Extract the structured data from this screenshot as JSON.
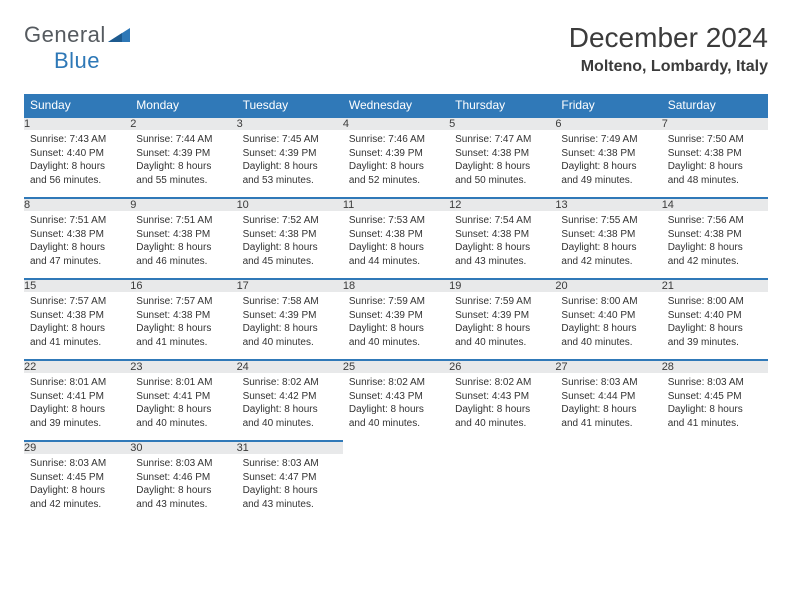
{
  "logo": {
    "word1": "General",
    "word2": "Blue"
  },
  "title": "December 2024",
  "location": "Molteno, Lombardy, Italy",
  "colors": {
    "header_bg": "#3079b8",
    "header_text": "#ffffff",
    "daynum_bg": "#e8e9ea",
    "border": "#3079b8",
    "text": "#333333",
    "logo_gray": "#555a5f",
    "logo_blue": "#2e78b7",
    "background": "#ffffff"
  },
  "typography": {
    "title_fontsize": 28,
    "location_fontsize": 16,
    "dayheader_fontsize": 12,
    "daynum_fontsize": 11,
    "detail_fontsize": 10
  },
  "day_headers": [
    "Sunday",
    "Monday",
    "Tuesday",
    "Wednesday",
    "Thursday",
    "Friday",
    "Saturday"
  ],
  "weeks": [
    [
      {
        "n": "1",
        "sunrise": "Sunrise: 7:43 AM",
        "sunset": "Sunset: 4:40 PM",
        "daylight": "Daylight: 8 hours and 56 minutes."
      },
      {
        "n": "2",
        "sunrise": "Sunrise: 7:44 AM",
        "sunset": "Sunset: 4:39 PM",
        "daylight": "Daylight: 8 hours and 55 minutes."
      },
      {
        "n": "3",
        "sunrise": "Sunrise: 7:45 AM",
        "sunset": "Sunset: 4:39 PM",
        "daylight": "Daylight: 8 hours and 53 minutes."
      },
      {
        "n": "4",
        "sunrise": "Sunrise: 7:46 AM",
        "sunset": "Sunset: 4:39 PM",
        "daylight": "Daylight: 8 hours and 52 minutes."
      },
      {
        "n": "5",
        "sunrise": "Sunrise: 7:47 AM",
        "sunset": "Sunset: 4:38 PM",
        "daylight": "Daylight: 8 hours and 50 minutes."
      },
      {
        "n": "6",
        "sunrise": "Sunrise: 7:49 AM",
        "sunset": "Sunset: 4:38 PM",
        "daylight": "Daylight: 8 hours and 49 minutes."
      },
      {
        "n": "7",
        "sunrise": "Sunrise: 7:50 AM",
        "sunset": "Sunset: 4:38 PM",
        "daylight": "Daylight: 8 hours and 48 minutes."
      }
    ],
    [
      {
        "n": "8",
        "sunrise": "Sunrise: 7:51 AM",
        "sunset": "Sunset: 4:38 PM",
        "daylight": "Daylight: 8 hours and 47 minutes."
      },
      {
        "n": "9",
        "sunrise": "Sunrise: 7:51 AM",
        "sunset": "Sunset: 4:38 PM",
        "daylight": "Daylight: 8 hours and 46 minutes."
      },
      {
        "n": "10",
        "sunrise": "Sunrise: 7:52 AM",
        "sunset": "Sunset: 4:38 PM",
        "daylight": "Daylight: 8 hours and 45 minutes."
      },
      {
        "n": "11",
        "sunrise": "Sunrise: 7:53 AM",
        "sunset": "Sunset: 4:38 PM",
        "daylight": "Daylight: 8 hours and 44 minutes."
      },
      {
        "n": "12",
        "sunrise": "Sunrise: 7:54 AM",
        "sunset": "Sunset: 4:38 PM",
        "daylight": "Daylight: 8 hours and 43 minutes."
      },
      {
        "n": "13",
        "sunrise": "Sunrise: 7:55 AM",
        "sunset": "Sunset: 4:38 PM",
        "daylight": "Daylight: 8 hours and 42 minutes."
      },
      {
        "n": "14",
        "sunrise": "Sunrise: 7:56 AM",
        "sunset": "Sunset: 4:38 PM",
        "daylight": "Daylight: 8 hours and 42 minutes."
      }
    ],
    [
      {
        "n": "15",
        "sunrise": "Sunrise: 7:57 AM",
        "sunset": "Sunset: 4:38 PM",
        "daylight": "Daylight: 8 hours and 41 minutes."
      },
      {
        "n": "16",
        "sunrise": "Sunrise: 7:57 AM",
        "sunset": "Sunset: 4:38 PM",
        "daylight": "Daylight: 8 hours and 41 minutes."
      },
      {
        "n": "17",
        "sunrise": "Sunrise: 7:58 AM",
        "sunset": "Sunset: 4:39 PM",
        "daylight": "Daylight: 8 hours and 40 minutes."
      },
      {
        "n": "18",
        "sunrise": "Sunrise: 7:59 AM",
        "sunset": "Sunset: 4:39 PM",
        "daylight": "Daylight: 8 hours and 40 minutes."
      },
      {
        "n": "19",
        "sunrise": "Sunrise: 7:59 AM",
        "sunset": "Sunset: 4:39 PM",
        "daylight": "Daylight: 8 hours and 40 minutes."
      },
      {
        "n": "20",
        "sunrise": "Sunrise: 8:00 AM",
        "sunset": "Sunset: 4:40 PM",
        "daylight": "Daylight: 8 hours and 40 minutes."
      },
      {
        "n": "21",
        "sunrise": "Sunrise: 8:00 AM",
        "sunset": "Sunset: 4:40 PM",
        "daylight": "Daylight: 8 hours and 39 minutes."
      }
    ],
    [
      {
        "n": "22",
        "sunrise": "Sunrise: 8:01 AM",
        "sunset": "Sunset: 4:41 PM",
        "daylight": "Daylight: 8 hours and 39 minutes."
      },
      {
        "n": "23",
        "sunrise": "Sunrise: 8:01 AM",
        "sunset": "Sunset: 4:41 PM",
        "daylight": "Daylight: 8 hours and 40 minutes."
      },
      {
        "n": "24",
        "sunrise": "Sunrise: 8:02 AM",
        "sunset": "Sunset: 4:42 PM",
        "daylight": "Daylight: 8 hours and 40 minutes."
      },
      {
        "n": "25",
        "sunrise": "Sunrise: 8:02 AM",
        "sunset": "Sunset: 4:43 PM",
        "daylight": "Daylight: 8 hours and 40 minutes."
      },
      {
        "n": "26",
        "sunrise": "Sunrise: 8:02 AM",
        "sunset": "Sunset: 4:43 PM",
        "daylight": "Daylight: 8 hours and 40 minutes."
      },
      {
        "n": "27",
        "sunrise": "Sunrise: 8:03 AM",
        "sunset": "Sunset: 4:44 PM",
        "daylight": "Daylight: 8 hours and 41 minutes."
      },
      {
        "n": "28",
        "sunrise": "Sunrise: 8:03 AM",
        "sunset": "Sunset: 4:45 PM",
        "daylight": "Daylight: 8 hours and 41 minutes."
      }
    ],
    [
      {
        "n": "29",
        "sunrise": "Sunrise: 8:03 AM",
        "sunset": "Sunset: 4:45 PM",
        "daylight": "Daylight: 8 hours and 42 minutes."
      },
      {
        "n": "30",
        "sunrise": "Sunrise: 8:03 AM",
        "sunset": "Sunset: 4:46 PM",
        "daylight": "Daylight: 8 hours and 43 minutes."
      },
      {
        "n": "31",
        "sunrise": "Sunrise: 8:03 AM",
        "sunset": "Sunset: 4:47 PM",
        "daylight": "Daylight: 8 hours and 43 minutes."
      },
      null,
      null,
      null,
      null
    ]
  ]
}
